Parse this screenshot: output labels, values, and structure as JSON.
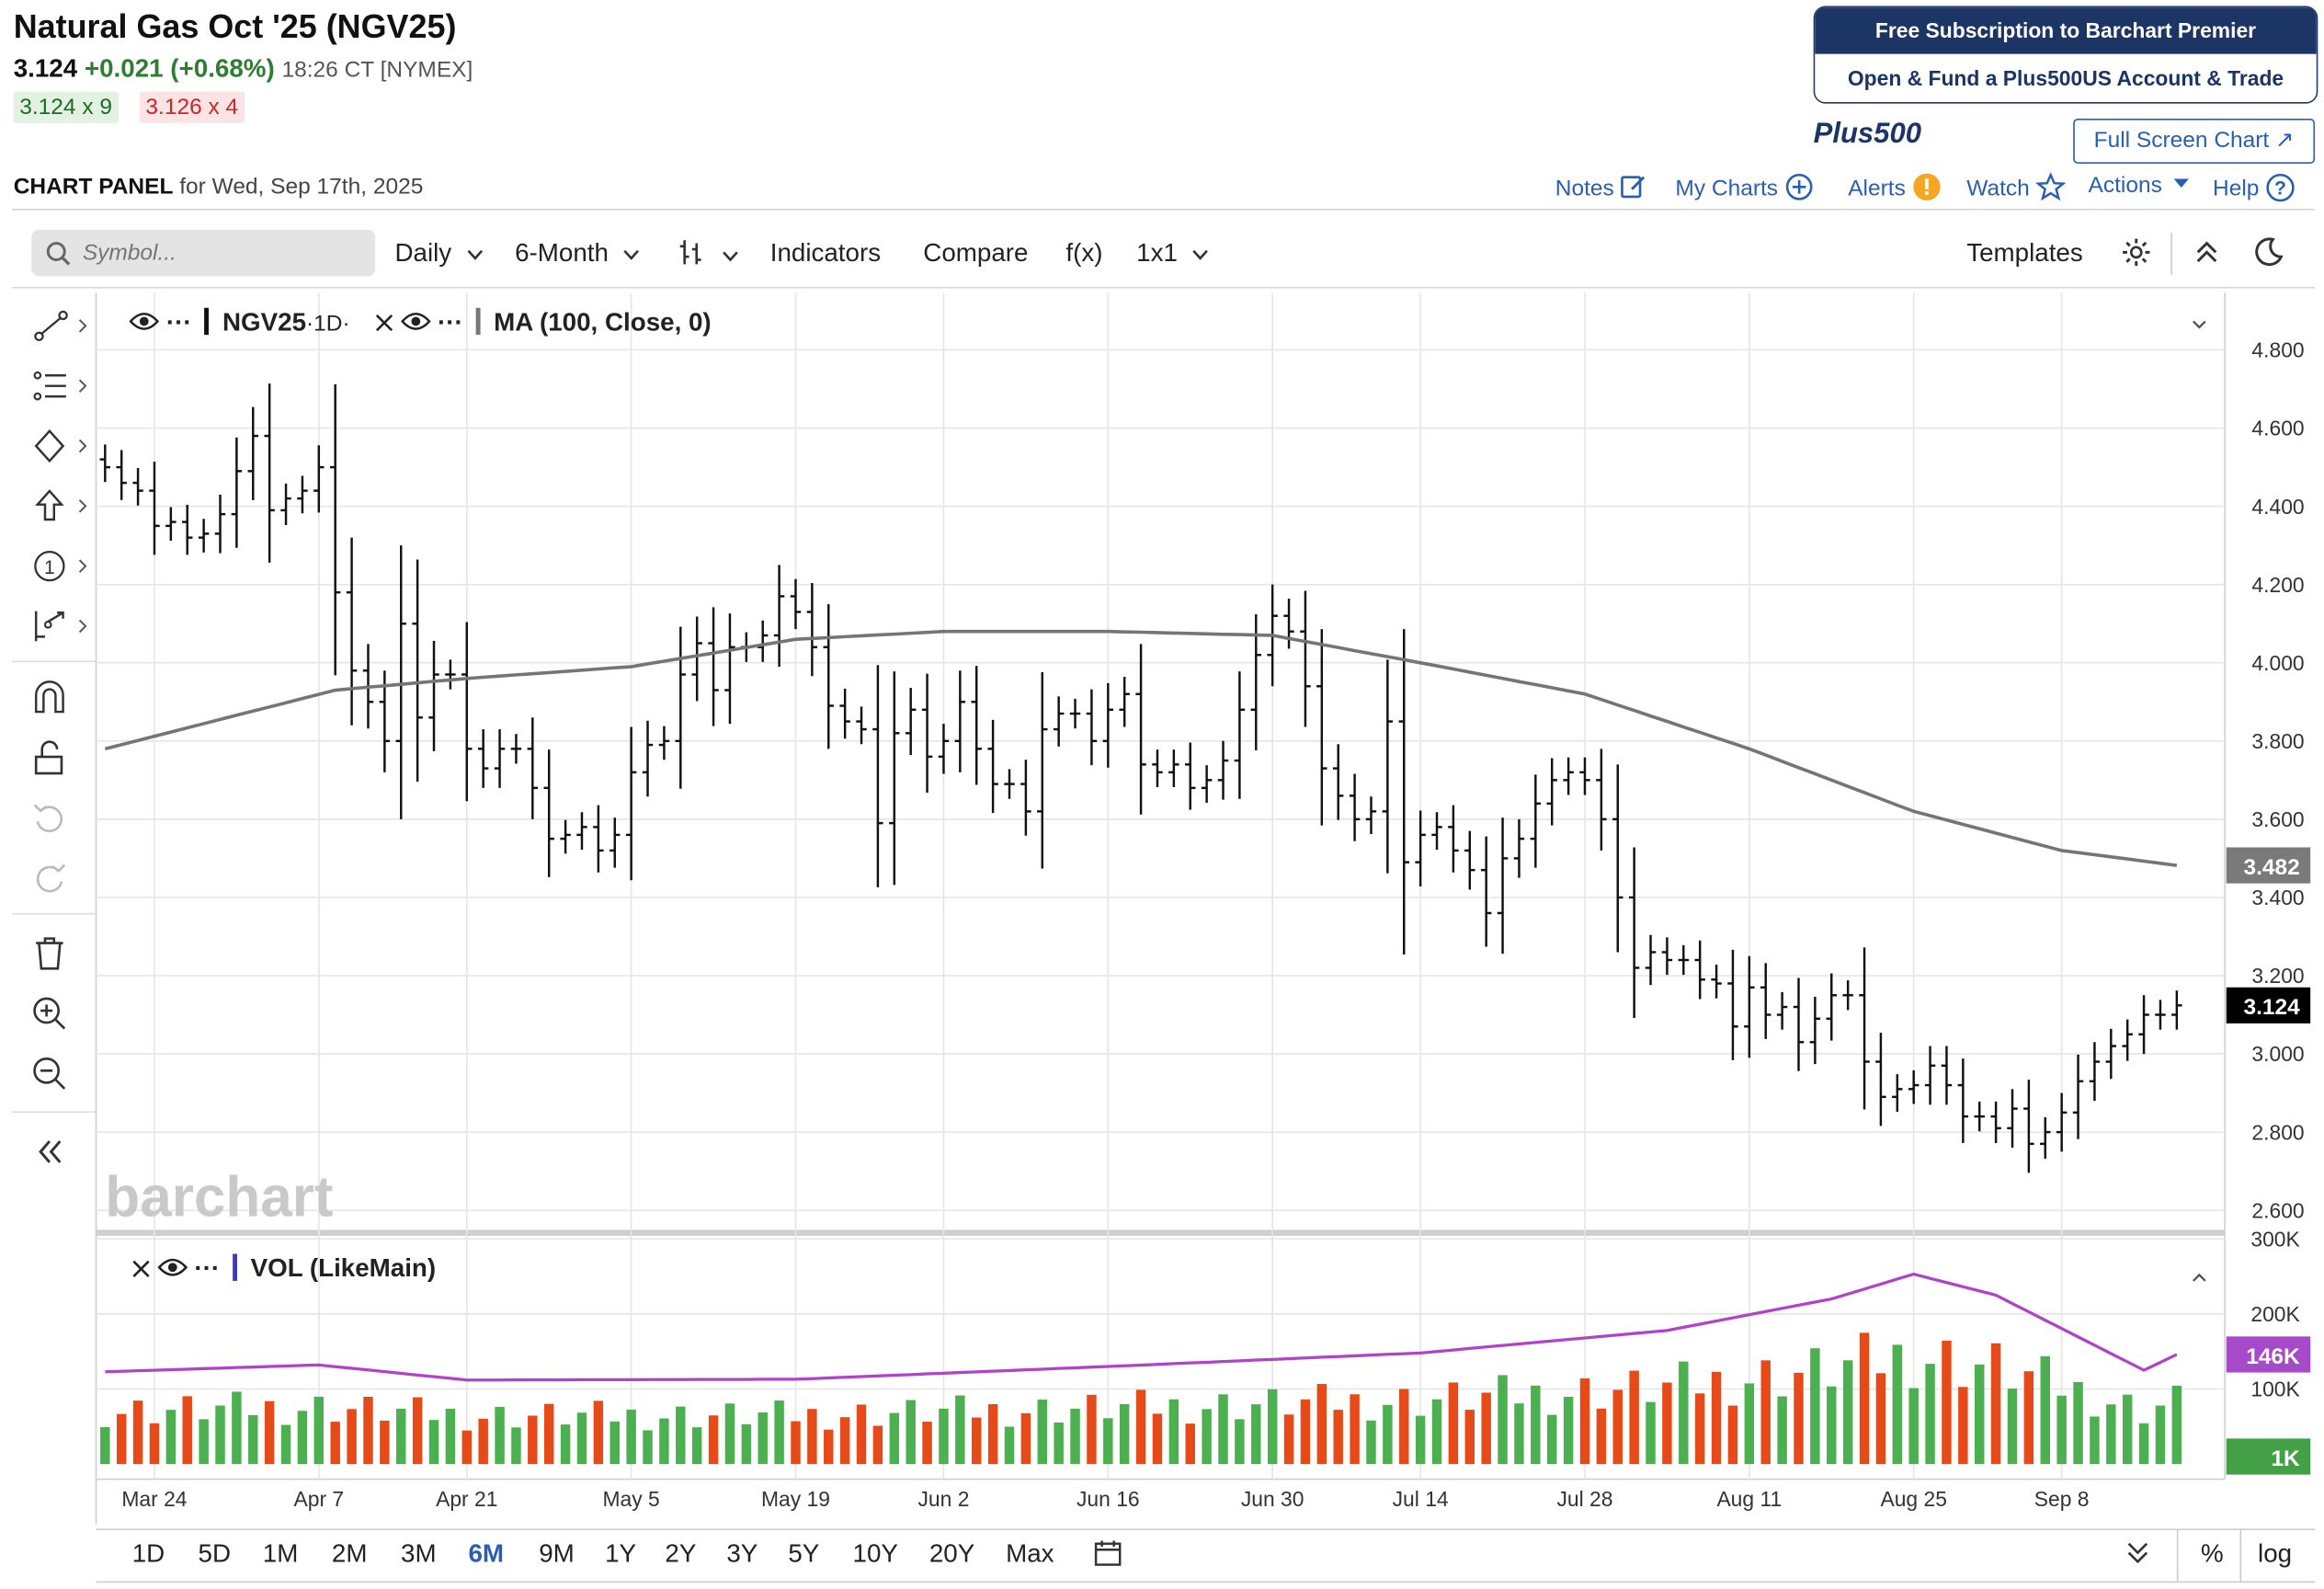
{
  "header": {
    "title": "Natural Gas Oct '25 (NGV25)",
    "last": "3.124",
    "change": "+0.021 (+0.68%)",
    "time": "18:26 CT [NYMEX]",
    "bid": "3.124 x 9",
    "ask": "3.126 x 4"
  },
  "promo": {
    "line1": "Free Subscription to Barchart Premier",
    "line2": "Open & Fund a Plus500US Account & Trade",
    "brand": "Plus500"
  },
  "full_screen": "Full Screen Chart ↗",
  "panel": {
    "label": "CHART PANEL",
    "date": "for Wed, Sep 17th, 2025"
  },
  "links": {
    "notes": "Notes",
    "my_charts": "My Charts",
    "alerts": "Alerts",
    "watch": "Watch",
    "actions": "Actions",
    "help": "Help"
  },
  "toolbar": {
    "symbol_placeholder": "Symbol...",
    "interval": "Daily",
    "period": "6-Month",
    "indicators": "Indicators",
    "compare": "Compare",
    "fx": "f(x)",
    "layout": "1x1",
    "templates": "Templates"
  },
  "legend": {
    "main_symbol": "NGV25",
    "main_interval": "·1D·",
    "ma_label": "MA (100, Close, 0)",
    "vol_label": "VOL (LikeMain)"
  },
  "watermark": "barchart",
  "price_axis": [
    "4.800",
    "4.600",
    "4.400",
    "4.200",
    "4.000",
    "3.800",
    "3.600",
    "3.400",
    "3.200",
    "3.000",
    "2.800",
    "2.600"
  ],
  "price_badges": {
    "ma": "3.482",
    "last": "3.124"
  },
  "volume_axis": [
    "300K",
    "200K",
    "100K"
  ],
  "volume_badges": {
    "ma": "146K",
    "vol": "1K"
  },
  "x_axis": [
    "Mar 24",
    "Apr 7",
    "Apr 21",
    "May 5",
    "May 19",
    "Jun 2",
    "Jun 16",
    "Jun 30",
    "Jul 14",
    "Jul 28",
    "Aug 11",
    "Aug 25",
    "Sep 8"
  ],
  "ranges": [
    "1D",
    "5D",
    "1M",
    "2M",
    "3M",
    "6M",
    "9M",
    "1Y",
    "2Y",
    "3Y",
    "5Y",
    "10Y",
    "20Y",
    "Max"
  ],
  "active_range": "6M",
  "bottom_right": {
    "percent": "%",
    "log": "log"
  },
  "colors": {
    "up": "#4caf50",
    "down": "#e64a19",
    "ma": "#757575",
    "vol_ma": "#b044c8",
    "link": "#2a5fb0",
    "badge_last": "#000000",
    "badge_ma": "#7a7a7a",
    "badge_vol_ma": "#a64ac9",
    "badge_vol": "#43a047"
  },
  "chart_data": {
    "type": "line",
    "title": "Natural Gas Oct '25 (NGV25)",
    "interval": "Daily",
    "x_range": [
      "Mar 19, 2025",
      "Sep 17, 2025"
    ],
    "ylim": [
      2.6,
      4.85
    ],
    "price_series": [
      {
        "x": "Mar 19",
        "close": 4.5
      },
      {
        "x": "Mar 20",
        "close": 4.46
      },
      {
        "x": "Mar 21",
        "close": 4.44
      },
      {
        "x": "Mar 24",
        "close": 4.35
      },
      {
        "x": "Mar 25",
        "close": 4.36
      },
      {
        "x": "Mar 26",
        "close": 4.32
      },
      {
        "x": "Mar 27",
        "close": 4.33
      },
      {
        "x": "Mar 28",
        "close": 4.38
      },
      {
        "x": "Mar 31",
        "close": 4.49
      },
      {
        "x": "Apr 1",
        "close": 4.58
      },
      {
        "x": "Apr 2",
        "close": 4.39
      },
      {
        "x": "Apr 3",
        "close": 4.42
      },
      {
        "x": "Apr 4",
        "close": 4.44
      },
      {
        "x": "Apr 7",
        "close": 4.5
      },
      {
        "x": "Apr 8",
        "close": 4.18
      },
      {
        "x": "Apr 9",
        "close": 3.98
      },
      {
        "x": "Apr 10",
        "close": 3.9
      },
      {
        "x": "Apr 11",
        "close": 3.8
      },
      {
        "x": "Apr 14",
        "close": 4.1
      },
      {
        "x": "Apr 15",
        "close": 3.86
      },
      {
        "x": "Apr 16",
        "close": 3.97
      },
      {
        "x": "Apr 17",
        "close": 3.97
      },
      {
        "x": "Apr 21",
        "close": 3.78
      },
      {
        "x": "Apr 22",
        "close": 3.73
      },
      {
        "x": "Apr 23",
        "close": 3.78
      },
      {
        "x": "Apr 24",
        "close": 3.78
      },
      {
        "x": "Apr 25",
        "close": 3.68
      },
      {
        "x": "Apr 28",
        "close": 3.55
      },
      {
        "x": "Apr 29",
        "close": 3.56
      },
      {
        "x": "Apr 30",
        "close": 3.58
      },
      {
        "x": "May 1",
        "close": 3.52
      },
      {
        "x": "May 2",
        "close": 3.56
      },
      {
        "x": "May 5",
        "close": 3.72
      },
      {
        "x": "May 6",
        "close": 3.79
      },
      {
        "x": "May 7",
        "close": 3.8
      },
      {
        "x": "May 8",
        "close": 3.97
      },
      {
        "x": "May 9",
        "close": 4.05
      },
      {
        "x": "May 12",
        "close": 3.93
      },
      {
        "x": "May 13",
        "close": 4.04
      },
      {
        "x": "May 14",
        "close": 4.04
      },
      {
        "x": "May 15",
        "close": 4.07
      },
      {
        "x": "May 16",
        "close": 4.17
      },
      {
        "x": "May 19",
        "close": 4.13
      },
      {
        "x": "May 20",
        "close": 4.04
      },
      {
        "x": "May 21",
        "close": 3.89
      },
      {
        "x": "May 22",
        "close": 3.85
      },
      {
        "x": "May 23",
        "close": 3.83
      },
      {
        "x": "May 27",
        "close": 3.59
      },
      {
        "x": "May 28",
        "close": 3.82
      },
      {
        "x": "May 29",
        "close": 3.88
      },
      {
        "x": "May 30",
        "close": 3.76
      },
      {
        "x": "Jun 2",
        "close": 3.8
      },
      {
        "x": "Jun 3",
        "close": 3.9
      },
      {
        "x": "Jun 4",
        "close": 3.78
      },
      {
        "x": "Jun 5",
        "close": 3.69
      },
      {
        "x": "Jun 6",
        "close": 3.69
      },
      {
        "x": "Jun 9",
        "close": 3.62
      },
      {
        "x": "Jun 10",
        "close": 3.83
      },
      {
        "x": "Jun 11",
        "close": 3.87
      },
      {
        "x": "Jun 12",
        "close": 3.87
      },
      {
        "x": "Jun 13",
        "close": 3.8
      },
      {
        "x": "Jun 16",
        "close": 3.88
      },
      {
        "x": "Jun 17",
        "close": 3.92
      },
      {
        "x": "Jun 18",
        "close": 3.74
      },
      {
        "x": "Jun 19",
        "close": 3.72
      },
      {
        "x": "Jun 20",
        "close": 3.74
      },
      {
        "x": "Jun 23",
        "close": 3.68
      },
      {
        "x": "Jun 24",
        "close": 3.7
      },
      {
        "x": "Jun 25",
        "close": 3.75
      },
      {
        "x": "Jun 26",
        "close": 3.88
      },
      {
        "x": "Jun 27",
        "close": 4.02
      },
      {
        "x": "Jun 30",
        "close": 4.12
      },
      {
        "x": "Jul 1",
        "close": 4.08
      },
      {
        "x": "Jul 2",
        "close": 3.94
      },
      {
        "x": "Jul 3",
        "close": 3.73
      },
      {
        "x": "Jul 7",
        "close": 3.66
      },
      {
        "x": "Jul 8",
        "close": 3.6
      },
      {
        "x": "Jul 9",
        "close": 3.62
      },
      {
        "x": "Jul 10",
        "close": 3.85
      },
      {
        "x": "Jul 11",
        "close": 3.49
      },
      {
        "x": "Jul 14",
        "close": 3.56
      },
      {
        "x": "Jul 15",
        "close": 3.58
      },
      {
        "x": "Jul 16",
        "close": 3.52
      },
      {
        "x": "Jul 17",
        "close": 3.47
      },
      {
        "x": "Jul 18",
        "close": 3.36
      },
      {
        "x": "Jul 21",
        "close": 3.5
      },
      {
        "x": "Jul 22",
        "close": 3.55
      },
      {
        "x": "Jul 23",
        "close": 3.64
      },
      {
        "x": "Jul 24",
        "close": 3.7
      },
      {
        "x": "Jul 25",
        "close": 3.72
      },
      {
        "x": "Jul 28",
        "close": 3.7
      },
      {
        "x": "Jul 29",
        "close": 3.6
      },
      {
        "x": "Jul 30",
        "close": 3.4
      },
      {
        "x": "Jul 31",
        "close": 3.22
      },
      {
        "x": "Aug 1",
        "close": 3.26
      },
      {
        "x": "Aug 4",
        "close": 3.24
      },
      {
        "x": "Aug 5",
        "close": 3.24
      },
      {
        "x": "Aug 6",
        "close": 3.19
      },
      {
        "x": "Aug 7",
        "close": 3.18
      },
      {
        "x": "Aug 8",
        "close": 3.07
      },
      {
        "x": "Aug 11",
        "close": 3.17
      },
      {
        "x": "Aug 12",
        "close": 3.1
      },
      {
        "x": "Aug 13",
        "close": 3.12
      },
      {
        "x": "Aug 14",
        "close": 3.03
      },
      {
        "x": "Aug 15",
        "close": 3.09
      },
      {
        "x": "Aug 18",
        "close": 3.15
      },
      {
        "x": "Aug 19",
        "close": 3.15
      },
      {
        "x": "Aug 20",
        "close": 2.98
      },
      {
        "x": "Aug 21",
        "close": 2.89
      },
      {
        "x": "Aug 22",
        "close": 2.91
      },
      {
        "x": "Aug 25",
        "close": 2.92
      },
      {
        "x": "Aug 26",
        "close": 2.97
      },
      {
        "x": "Aug 27",
        "close": 2.92
      },
      {
        "x": "Aug 28",
        "close": 2.84
      },
      {
        "x": "Aug 29",
        "close": 2.84
      },
      {
        "x": "Sep 2",
        "close": 2.81
      },
      {
        "x": "Sep 3",
        "close": 2.86
      },
      {
        "x": "Sep 4",
        "close": 2.77
      },
      {
        "x": "Sep 5",
        "close": 2.8
      },
      {
        "x": "Sep 8",
        "close": 2.85
      },
      {
        "x": "Sep 9",
        "close": 2.93
      },
      {
        "x": "Sep 10",
        "close": 2.98
      },
      {
        "x": "Sep 11",
        "close": 3.02
      },
      {
        "x": "Sep 12",
        "close": 3.05
      },
      {
        "x": "Sep 15",
        "close": 3.1
      },
      {
        "x": "Sep 16",
        "close": 3.1
      },
      {
        "x": "Sep 17",
        "close": 3.124
      }
    ],
    "ma_series": [
      {
        "x": "Mar 19",
        "y": 3.78
      },
      {
        "x": "Apr 8",
        "y": 3.93
      },
      {
        "x": "Apr 21",
        "y": 3.96
      },
      {
        "x": "May 5",
        "y": 3.99
      },
      {
        "x": "May 19",
        "y": 4.06
      },
      {
        "x": "Jun 2",
        "y": 4.08
      },
      {
        "x": "Jun 16",
        "y": 4.08
      },
      {
        "x": "Jun 30",
        "y": 4.07
      },
      {
        "x": "Jul 14",
        "y": 4.0
      },
      {
        "x": "Jul 28",
        "y": 3.92
      },
      {
        "x": "Aug 11",
        "y": 3.78
      },
      {
        "x": "Aug 25",
        "y": 3.62
      },
      {
        "x": "Sep 8",
        "y": 3.52
      },
      {
        "x": "Sep 17",
        "y": 3.482
      }
    ],
    "volume_ma": [
      {
        "x": "Mar 19",
        "y": 123
      },
      {
        "x": "Apr 7",
        "y": 132
      },
      {
        "x": "Apr 21",
        "y": 112
      },
      {
        "x": "May 19",
        "y": 113
      },
      {
        "x": "Jun 16",
        "y": 130
      },
      {
        "x": "Jul 14",
        "y": 148
      },
      {
        "x": "Aug 4",
        "y": 178
      },
      {
        "x": "Aug 18",
        "y": 220
      },
      {
        "x": "Aug 25",
        "y": 253
      },
      {
        "x": "Sep 2",
        "y": 225
      },
      {
        "x": "Sep 15",
        "y": 125
      },
      {
        "x": "Sep 17",
        "y": 146
      }
    ],
    "volume_unit": "K"
  }
}
